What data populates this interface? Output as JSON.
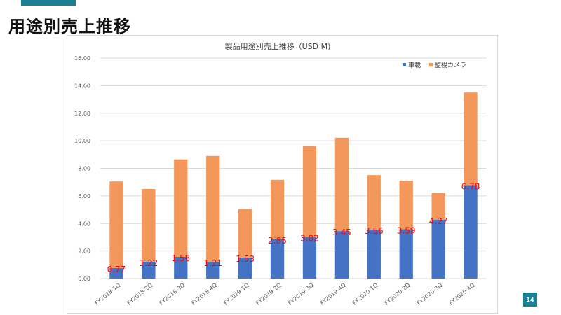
{
  "slide": {
    "title": "用途別売上推移",
    "page_number": "14"
  },
  "colors": {
    "accent": "#1a7f93",
    "automotive": "#4472c4",
    "surveillance": "#f4975a",
    "data_label": "#ff0000"
  },
  "chart_data": {
    "type": "bar",
    "stacked": true,
    "title": "製品用途別売上推移（USD M)",
    "categories": [
      "FY2018-1Q",
      "FY2018-2Q",
      "FY2018-3Q",
      "FY2018-4Q",
      "FY2019-1Q",
      "FY2019-2Q",
      "FY2019-3Q",
      "FY2019-4Q",
      "FY2020-1Q",
      "FY2020-2Q",
      "FY2020-3Q",
      "FY2020-4Q"
    ],
    "series": [
      {
        "name": "車載",
        "values": [
          0.77,
          1.22,
          1.58,
          1.21,
          1.53,
          2.85,
          3.02,
          3.45,
          3.56,
          3.59,
          4.27,
          6.78
        ]
      },
      {
        "name": "監視カメラ",
        "values": [
          6.28,
          5.28,
          7.07,
          7.69,
          3.52,
          4.32,
          6.6,
          6.77,
          3.95,
          3.51,
          1.93,
          6.72
        ]
      }
    ],
    "data_labels": [
      "0.77",
      "1.22",
      "1.58",
      "1.21",
      "1.53",
      "2.85",
      "3.02",
      "3.45",
      "3.56",
      "3.59",
      "4.27",
      "6.78"
    ],
    "y_ticks": [
      "0.00",
      "2.00",
      "4.00",
      "6.00",
      "8.00",
      "10.00",
      "12.00",
      "14.00",
      "16.00"
    ],
    "ylim": [
      0,
      16
    ],
    "grid": true,
    "legend_position": "top-right"
  }
}
